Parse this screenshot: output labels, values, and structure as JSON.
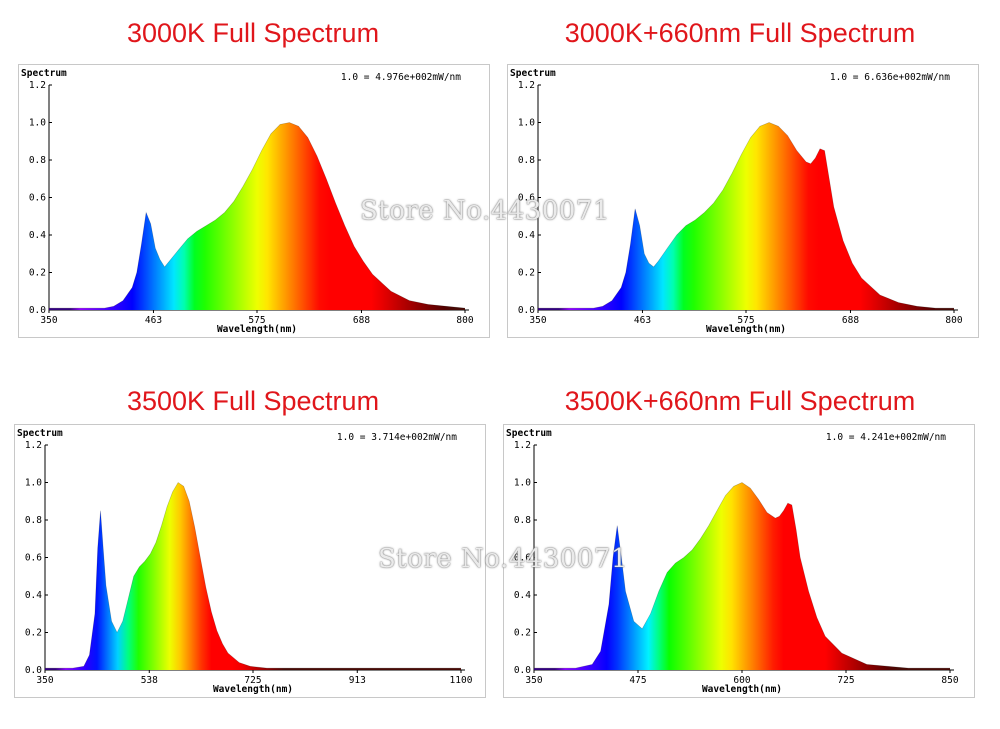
{
  "titles": [
    "3000K Full Spectrum",
    "3000K+660nm Full Spectrum",
    "3500K Full Spectrum",
    "3500K+660nm Full Spectrum"
  ],
  "watermark": "Store No.4430071",
  "chart_data": [
    {
      "type": "area",
      "title": "3000K Full Spectrum",
      "ylabel": "Spectrum",
      "xlabel": "Wavelength(nm)",
      "scale_note": "1.0 = 4.976e+002mW/nm",
      "xlim": [
        350,
        800
      ],
      "ylim": [
        0,
        1.2
      ],
      "xticks": [
        350,
        463,
        575,
        688,
        800
      ],
      "yticks": [
        0.0,
        0.2,
        0.4,
        0.6,
        0.8,
        1.0,
        1.2
      ],
      "x": [
        350,
        380,
        410,
        420,
        430,
        440,
        445,
        450,
        455,
        460,
        465,
        470,
        475,
        480,
        490,
        500,
        510,
        520,
        530,
        540,
        550,
        560,
        570,
        580,
        590,
        600,
        610,
        620,
        630,
        640,
        650,
        660,
        670,
        680,
        690,
        700,
        720,
        740,
        760,
        780,
        800
      ],
      "y": [
        0.01,
        0.01,
        0.01,
        0.02,
        0.05,
        0.12,
        0.2,
        0.35,
        0.52,
        0.46,
        0.33,
        0.27,
        0.23,
        0.26,
        0.32,
        0.38,
        0.42,
        0.45,
        0.48,
        0.52,
        0.58,
        0.66,
        0.75,
        0.85,
        0.94,
        0.99,
        1.0,
        0.98,
        0.92,
        0.82,
        0.7,
        0.57,
        0.45,
        0.34,
        0.26,
        0.19,
        0.1,
        0.05,
        0.03,
        0.02,
        0.01
      ]
    },
    {
      "type": "area",
      "title": "3000K+660nm Full Spectrum",
      "ylabel": "Spectrum",
      "xlabel": "Wavelength(nm)",
      "scale_note": "1.0 = 6.636e+002mW/nm",
      "xlim": [
        350,
        800
      ],
      "ylim": [
        0,
        1.2
      ],
      "xticks": [
        350,
        463,
        575,
        688,
        800
      ],
      "yticks": [
        0.0,
        0.2,
        0.4,
        0.6,
        0.8,
        1.0,
        1.2
      ],
      "x": [
        350,
        380,
        410,
        420,
        430,
        440,
        445,
        450,
        455,
        460,
        465,
        470,
        475,
        480,
        490,
        500,
        510,
        520,
        530,
        540,
        550,
        560,
        570,
        580,
        590,
        600,
        610,
        620,
        630,
        640,
        645,
        650,
        655,
        660,
        665,
        670,
        680,
        690,
        700,
        720,
        740,
        760,
        780,
        800
      ],
      "y": [
        0.01,
        0.01,
        0.01,
        0.02,
        0.05,
        0.12,
        0.2,
        0.35,
        0.54,
        0.45,
        0.3,
        0.25,
        0.23,
        0.26,
        0.33,
        0.4,
        0.45,
        0.48,
        0.52,
        0.57,
        0.64,
        0.73,
        0.83,
        0.92,
        0.98,
        1.0,
        0.98,
        0.93,
        0.85,
        0.79,
        0.78,
        0.81,
        0.86,
        0.85,
        0.7,
        0.55,
        0.37,
        0.25,
        0.17,
        0.08,
        0.04,
        0.02,
        0.01,
        0.01
      ]
    },
    {
      "type": "area",
      "title": "3500K Full Spectrum",
      "ylabel": "Spectrum",
      "xlabel": "Wavelength(nm)",
      "scale_note": "1.0 = 3.714e+002mW/nm",
      "xlim": [
        350,
        1100
      ],
      "ylim": [
        0,
        1.2
      ],
      "xticks": [
        350,
        538,
        725,
        913,
        1100
      ],
      "yticks": [
        0.0,
        0.2,
        0.4,
        0.6,
        0.8,
        1.0,
        1.2
      ],
      "x": [
        350,
        400,
        420,
        430,
        440,
        445,
        450,
        455,
        460,
        470,
        480,
        490,
        500,
        510,
        520,
        530,
        540,
        550,
        560,
        570,
        580,
        590,
        600,
        610,
        620,
        630,
        640,
        650,
        660,
        670,
        680,
        700,
        720,
        750,
        800,
        850,
        900,
        1000,
        1100
      ],
      "y": [
        0.01,
        0.01,
        0.02,
        0.08,
        0.3,
        0.65,
        0.85,
        0.65,
        0.45,
        0.26,
        0.2,
        0.26,
        0.38,
        0.5,
        0.55,
        0.58,
        0.62,
        0.68,
        0.77,
        0.87,
        0.95,
        1.0,
        0.98,
        0.9,
        0.76,
        0.6,
        0.44,
        0.31,
        0.21,
        0.14,
        0.09,
        0.04,
        0.02,
        0.01,
        0.01,
        0.01,
        0.01,
        0.01,
        0.01
      ]
    },
    {
      "type": "area",
      "title": "3500K+660nm Full Spectrum",
      "ylabel": "Spectrum",
      "xlabel": "Wavelength(nm)",
      "scale_note": "1.0 = 4.241e+002mW/nm",
      "xlim": [
        350,
        850
      ],
      "ylim": [
        0,
        1.2
      ],
      "xticks": [
        350,
        475,
        600,
        725,
        850
      ],
      "yticks": [
        0.0,
        0.2,
        0.4,
        0.6,
        0.8,
        1.0,
        1.2
      ],
      "x": [
        350,
        400,
        420,
        430,
        440,
        445,
        450,
        455,
        460,
        470,
        480,
        490,
        500,
        510,
        520,
        530,
        540,
        550,
        560,
        570,
        580,
        590,
        600,
        610,
        620,
        630,
        640,
        645,
        650,
        655,
        660,
        665,
        670,
        680,
        690,
        700,
        720,
        750,
        800,
        850
      ],
      "y": [
        0.01,
        0.01,
        0.03,
        0.1,
        0.35,
        0.6,
        0.77,
        0.6,
        0.42,
        0.26,
        0.22,
        0.3,
        0.42,
        0.52,
        0.57,
        0.6,
        0.64,
        0.7,
        0.77,
        0.85,
        0.93,
        0.98,
        1.0,
        0.97,
        0.91,
        0.84,
        0.81,
        0.82,
        0.85,
        0.89,
        0.88,
        0.75,
        0.6,
        0.42,
        0.28,
        0.18,
        0.09,
        0.03,
        0.01,
        0.01
      ]
    }
  ]
}
